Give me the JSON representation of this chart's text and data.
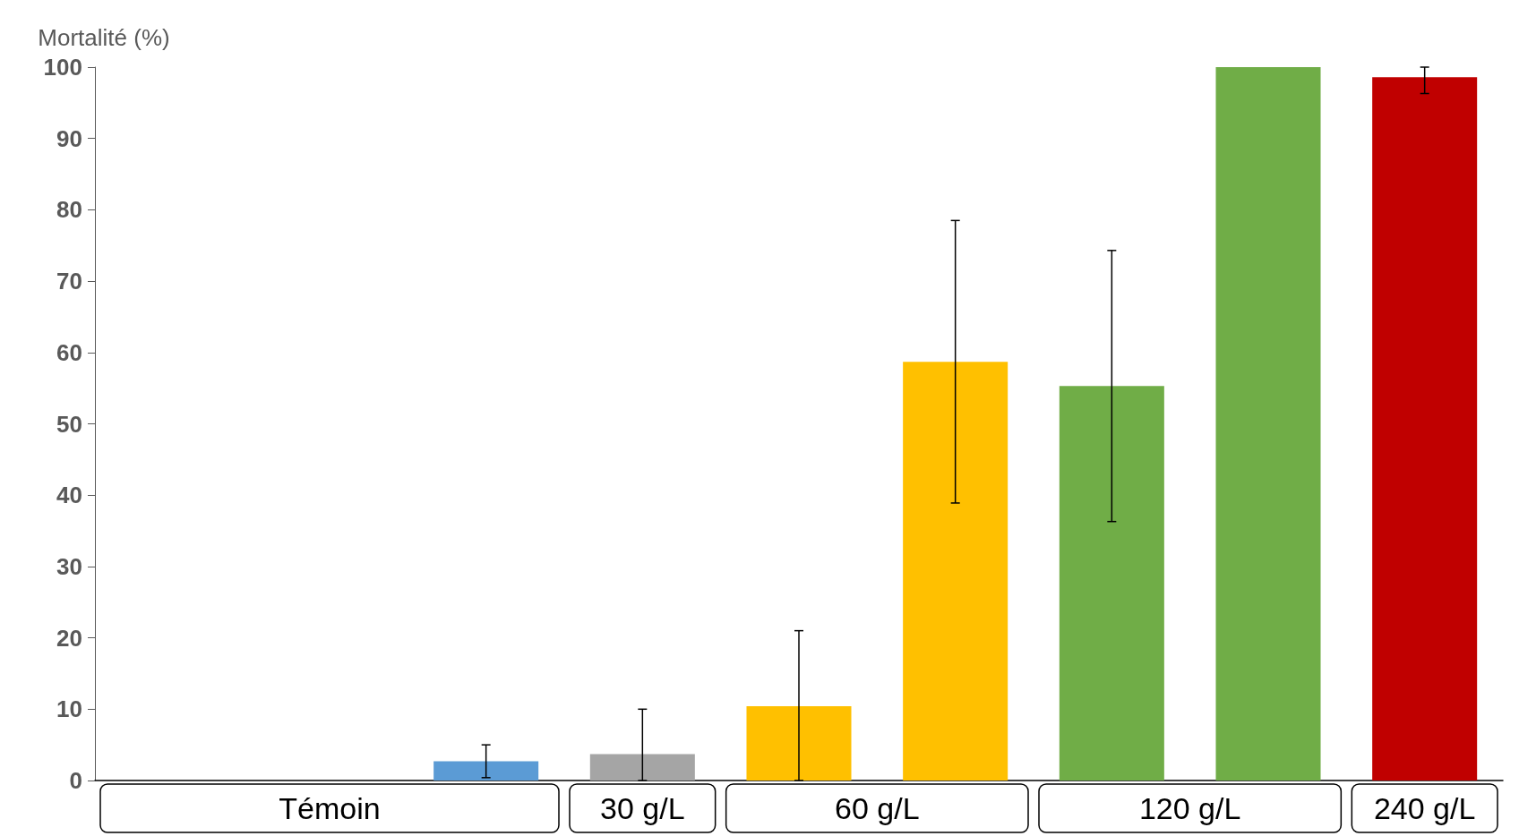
{
  "chart_data": {
    "type": "bar",
    "ylabel": "Mortalité (%)",
    "categories": [
      "Témoin",
      null,
      null,
      "30 g/L",
      "60 g/L",
      null,
      "120 g/L",
      null,
      "240 g/L"
    ],
    "values": [
      0,
      0,
      2.7,
      3.7,
      10.4,
      58.7,
      55.3,
      100,
      98.6
    ],
    "colors": [
      "#5b9bd5",
      "#5b9bd5",
      "#5b9bd5",
      "#a5a5a5",
      "#ffc000",
      "#ffc000",
      "#70ad47",
      "#70ad47",
      "#c00000"
    ],
    "errors": [
      null,
      null,
      [
        0.4,
        5.0
      ],
      [
        0,
        10.0
      ],
      [
        0,
        21.0
      ],
      [
        38.9,
        78.5
      ],
      [
        36.3,
        74.3
      ],
      null,
      [
        96.3,
        100
      ]
    ],
    "ylim": [
      0,
      100
    ],
    "yticks": [
      0,
      10,
      20,
      30,
      40,
      50,
      60,
      70,
      80,
      90,
      100
    ],
    "grid": false
  }
}
